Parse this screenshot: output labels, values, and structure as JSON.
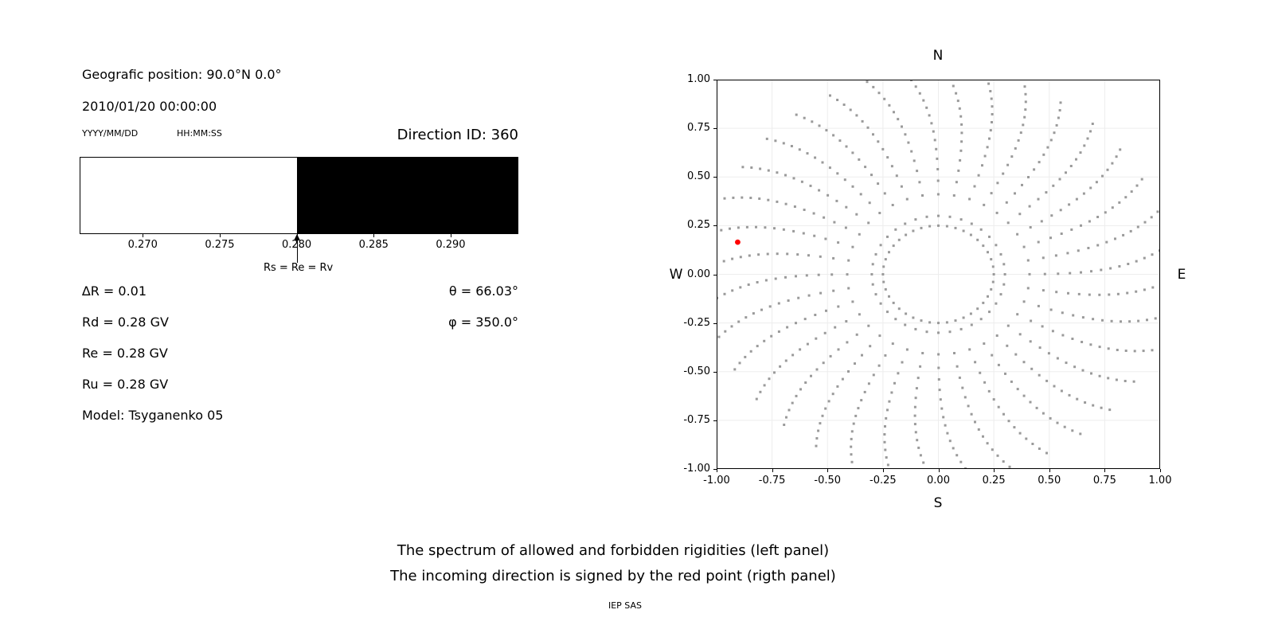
{
  "left_panel": {
    "geo_position": "Geografic position: 90.0°N 0.0°",
    "datetime": "2010/01/20 00:00:00",
    "date_format_label": "YYYY/MM/DD",
    "time_format_label": "HH:MM:SS",
    "direction_id": "Direction ID: 360",
    "spectrum": {
      "axis_min": 0.2659,
      "axis_max": 0.2944,
      "boundary_value": 0.28,
      "tick_values": [
        0.27,
        0.275,
        0.28,
        0.285,
        0.29
      ],
      "tick_labels": [
        "0.270",
        "0.275",
        "0.280",
        "0.285",
        "0.290"
      ],
      "arrow_label": "Rs = Re = Rv",
      "allowed_color": "#ffffff",
      "forbidden_color": "#000000"
    },
    "params": {
      "delta_r": "∆R = 0.01",
      "rd": "Rd = 0.28 GV",
      "re": "Re = 0.28 GV",
      "ru": "Ru = 0.28 GV",
      "model": "Model: Tsyganenko 05",
      "theta": "θ = 66.03°",
      "phi": "φ = 350.0°"
    }
  },
  "chart_data": {
    "type": "scatter",
    "xlim": [
      -1.0,
      1.0
    ],
    "ylim": [
      -1.0,
      1.0
    ],
    "xtick_values": [
      -1.0,
      -0.75,
      -0.5,
      -0.25,
      0.0,
      0.25,
      0.5,
      0.75,
      1.0
    ],
    "xtick_labels": [
      "-1.00",
      "-0.75",
      "-0.50",
      "-0.25",
      "0.00",
      "0.25",
      "0.50",
      "0.75",
      "1.00"
    ],
    "ytick_values": [
      -1.0,
      -0.75,
      -0.5,
      -0.25,
      0.0,
      0.25,
      0.5,
      0.75,
      1.0
    ],
    "ytick_labels": [
      "-1.00",
      "-0.75",
      "-0.50",
      "-0.25",
      "0.00",
      "0.25",
      "0.50",
      "0.75",
      "1.00"
    ],
    "compass": {
      "north": "N",
      "south": "S",
      "east": "E",
      "west": "W"
    },
    "grid_on": true,
    "grid_color": "#ededed",
    "dot_color": "#9a9a9a",
    "red_point": {
      "x": -0.905,
      "y": 0.165,
      "color": "#ff0000"
    },
    "pattern": {
      "description": "Gray dot trails: 36 radial spokes (every 10° azimuth) running from r≈0.30 out to the rim, denser and gently curved near the edge, plus a dotted inner circle of radius 0.25. Red dot marks the incoming direction (theta=66.03°, phi=350.0°).",
      "spoke_count": 36,
      "azimuth_step_deg": 10,
      "points_per_spoke": 16,
      "r_start": 0.3,
      "r_end": 1.04,
      "radial_exponent": 0.7,
      "swirl_deg": 8,
      "inner_ring_radius": 0.25,
      "inner_ring_points": 40
    }
  },
  "captions": {
    "line1": "The spectrum of allowed and forbidden rigidities (left panel)",
    "line2": "The incoming direction is signed by the red point (rigth panel)",
    "credit": "IEP SAS"
  }
}
